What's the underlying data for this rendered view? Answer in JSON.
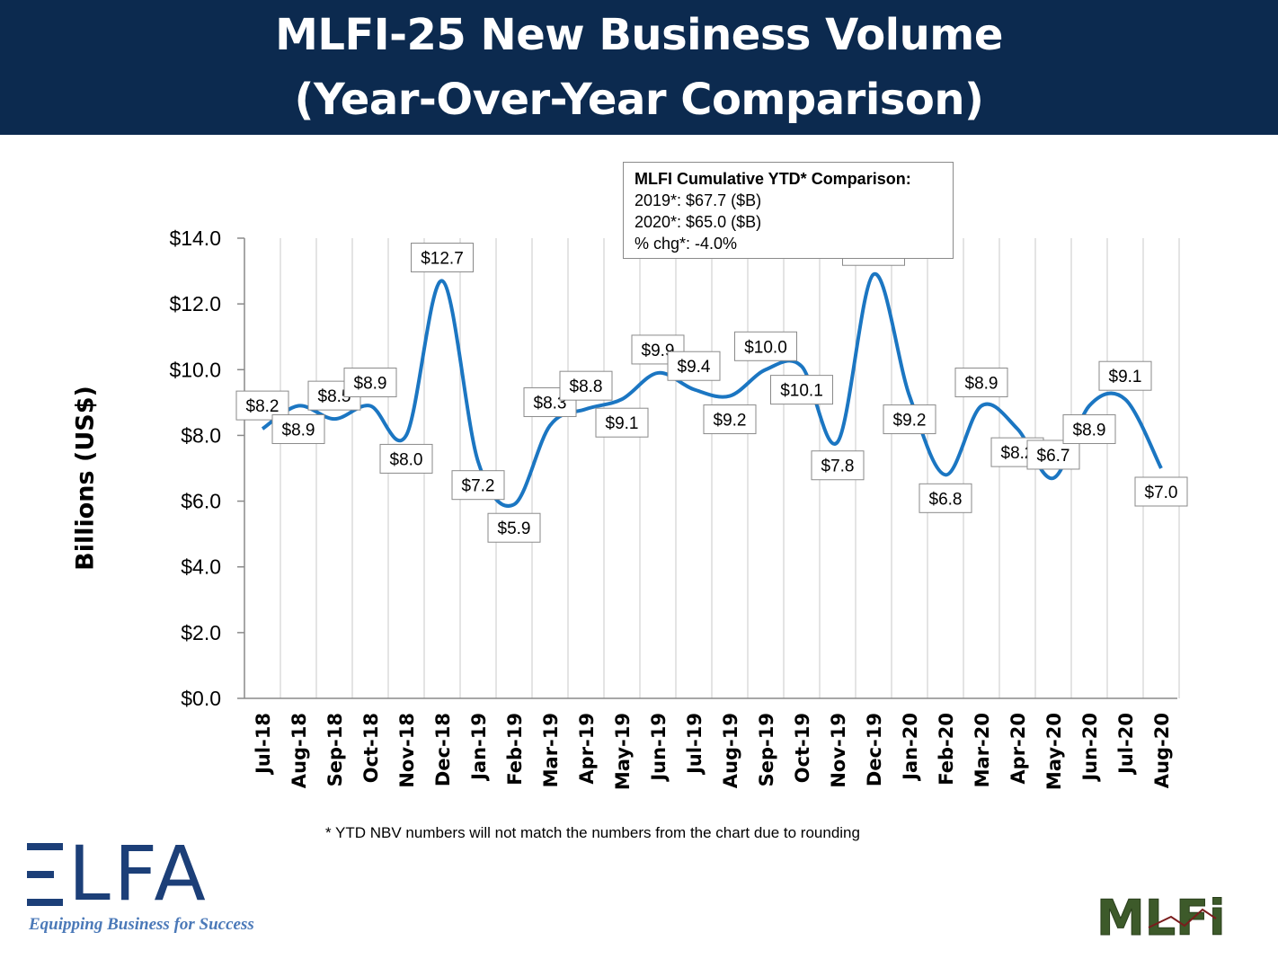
{
  "header": {
    "title_line1": "MLFI-25 New Business Volume",
    "title_line2": "(Year-Over-Year Comparison)"
  },
  "ytd_box": {
    "heading": "MLFI Cumulative YTD* Comparison:",
    "line1": "2019*: $67.7 ($B)",
    "line2": "2020*: $65.0 ($B)",
    "line3": "% chg*:  -4.0%"
  },
  "footnote": "*  YTD NBV numbers will not match the numbers from the chart due to rounding",
  "logos": {
    "elfa_text": "LFA",
    "elfa_tagline": "Equipping Business for Success",
    "mlfi_text": "MLFi"
  },
  "colors": {
    "header_bg": "#0c2a4f",
    "line": "#1b76c2",
    "grid": "#c8c8c8",
    "elfa_blue": "#1c3f78",
    "mlfi_green": "#3d5a2a"
  },
  "chart_data": {
    "type": "line",
    "ylabel": "Billions (US$)",
    "ylim": [
      0,
      14
    ],
    "yticks": [
      0,
      2,
      4,
      6,
      8,
      10,
      12,
      14
    ],
    "ytick_labels": [
      "$0.0",
      "$2.0",
      "$4.0",
      "$6.0",
      "$8.0",
      "$10.0",
      "$12.0",
      "$14.0"
    ],
    "grid": "vertical",
    "categories": [
      "Jul-18",
      "Aug-18",
      "Sep-18",
      "Oct-18",
      "Nov-18",
      "Dec-18",
      "Jan-19",
      "Feb-19",
      "Mar-19",
      "Apr-19",
      "May-19",
      "Jun-19",
      "Jul-19",
      "Aug-19",
      "Sep-19",
      "Oct-19",
      "Nov-19",
      "Dec-19",
      "Jan-20",
      "Feb-20",
      "Mar-20",
      "Apr-20",
      "May-20",
      "Jun-20",
      "Jul-20",
      "Aug-20"
    ],
    "values": [
      8.2,
      8.9,
      8.5,
      8.9,
      8.0,
      12.7,
      7.2,
      5.9,
      8.3,
      8.8,
      9.1,
      9.9,
      9.4,
      9.2,
      10.0,
      10.1,
      7.8,
      12.9,
      9.2,
      6.8,
      8.9,
      8.2,
      6.7,
      8.9,
      9.1,
      7.0
    ],
    "data_labels": [
      "$8.2",
      "$8.9",
      "$8.5",
      "$8.9",
      "$8.0",
      "$12.7",
      "$7.2",
      "$5.9",
      "$8.3",
      "$8.8",
      "$9.1",
      "$9.9",
      "$9.4",
      "$9.2",
      "$10.0",
      "$10.1",
      "$7.8",
      "$12.9",
      "$9.2",
      "$6.8",
      "$8.9",
      "$8.2",
      "$6.7",
      "$8.9",
      "$9.1",
      "$7.0"
    ]
  }
}
